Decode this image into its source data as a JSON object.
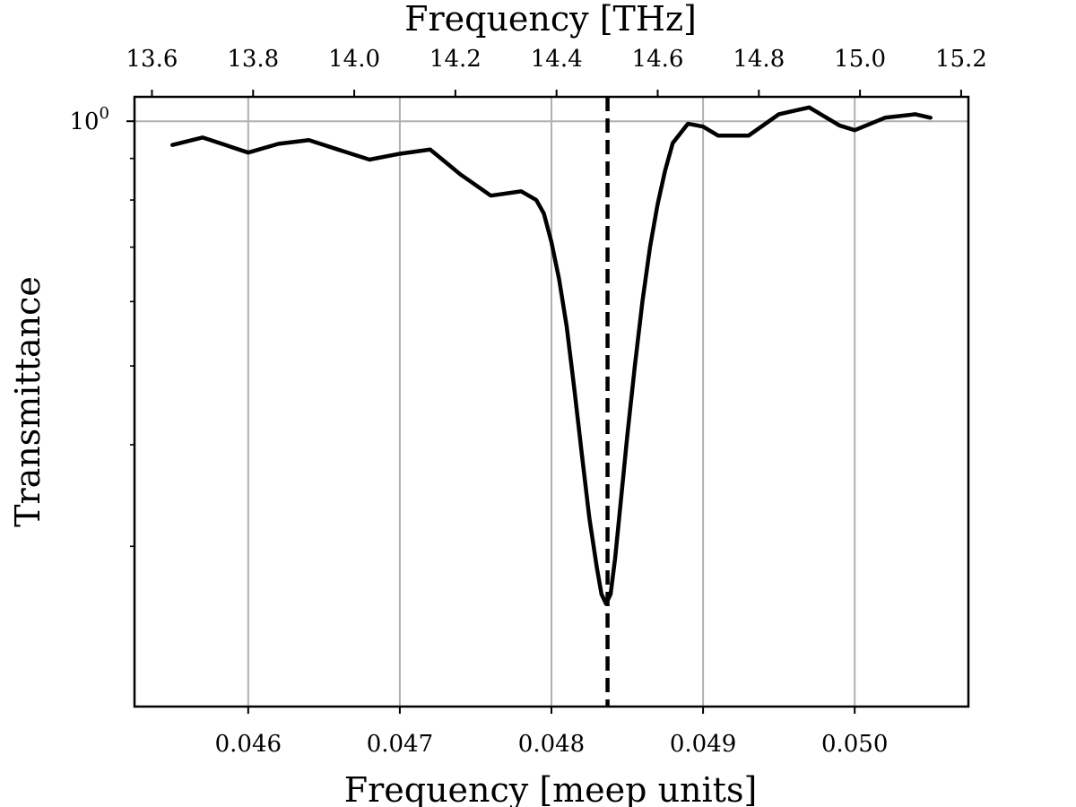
{
  "chart_data": {
    "type": "line",
    "title": "",
    "xlabel": "Frequency [meep units]",
    "ylabel": "Transmittance",
    "top_xlabel": "Frequency [THz]",
    "xlim": [
      0.04525,
      0.05075
    ],
    "ylim_log10": [
      -0.72,
      0.03
    ],
    "yscale": "log",
    "grid": true,
    "x_ticks": [
      0.046,
      0.047,
      0.048,
      0.049,
      0.05
    ],
    "x_tick_labels": [
      "0.046",
      "0.047",
      "0.048",
      "0.049",
      "0.050"
    ],
    "top_x_ticks": [
      13.6,
      13.8,
      14.0,
      14.2,
      14.4,
      14.6,
      14.8,
      15.0,
      15.2
    ],
    "top_x_tick_labels": [
      "13.6",
      "13.8",
      "14.0",
      "14.2",
      "14.4",
      "14.6",
      "14.8",
      "15.0",
      "15.2"
    ],
    "thz_per_meep": 299.79,
    "y_major_ticks": [
      1.0
    ],
    "y_major_tick_base": "10",
    "y_major_tick_exp": "0",
    "y_minor_ticks": [
      0.3,
      0.4,
      0.5,
      0.6,
      0.7,
      0.8,
      0.9
    ],
    "resonance_x": 0.04837,
    "line_color": "#000000",
    "grid_color": "#b0b0b0",
    "series": [
      {
        "x": [
          0.0455,
          0.0457,
          0.046,
          0.0462,
          0.0464,
          0.0466,
          0.0468,
          0.047,
          0.0472,
          0.0474,
          0.0476,
          0.0478,
          0.0479,
          0.04795,
          0.048,
          0.04805,
          0.0481,
          0.04815,
          0.0482,
          0.04825,
          0.0483,
          0.04833,
          0.04836,
          0.04839,
          0.04842,
          0.04845,
          0.0485,
          0.04855,
          0.0486,
          0.04865,
          0.0487,
          0.04875,
          0.0488,
          0.0489,
          0.049,
          0.0491,
          0.0493,
          0.0495,
          0.0497,
          0.0499,
          0.05,
          0.0502,
          0.0504,
          0.0505
        ],
        "y": [
          0.935,
          0.955,
          0.915,
          0.938,
          0.948,
          0.922,
          0.897,
          0.912,
          0.923,
          0.86,
          0.81,
          0.82,
          0.8,
          0.77,
          0.71,
          0.64,
          0.56,
          0.47,
          0.39,
          0.325,
          0.282,
          0.262,
          0.255,
          0.262,
          0.29,
          0.33,
          0.41,
          0.5,
          0.6,
          0.7,
          0.79,
          0.87,
          0.94,
          0.993,
          0.985,
          0.96,
          0.96,
          1.02,
          1.04,
          0.988,
          0.975,
          1.01,
          1.02,
          1.01
        ]
      }
    ]
  }
}
